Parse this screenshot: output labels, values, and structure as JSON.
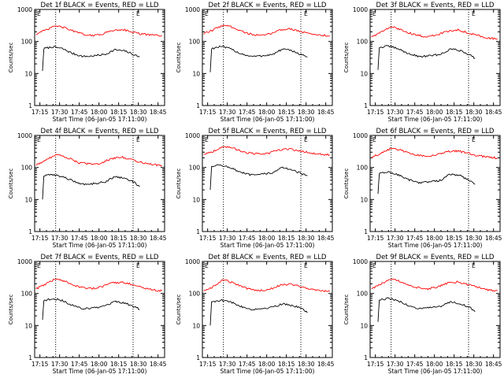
{
  "chart_data": [
    {
      "type": "line",
      "title": "Det 1f BLACK = Events, RED = LLD",
      "xlabel": "Start Time (06-Jan-05 17:11:00)",
      "ylabel": "Counts/sec",
      "yscale": "log",
      "ylim": [
        1,
        1000
      ],
      "xlim": [
        "17:11",
        "18:50"
      ],
      "x_tick_labels": [
        "17:15",
        "17:30",
        "17:45",
        "18:00",
        "18:15",
        "18:30",
        "18:45"
      ],
      "y_tick_labels": [
        "1",
        "10",
        "100",
        "1000"
      ],
      "vlines": [
        "17:27",
        "18:26"
      ],
      "markers": [
        "E",
        "E"
      ],
      "series": [
        {
          "color": "#000000",
          "x": [
            "17:17",
            "17:18",
            "17:25",
            "17:32",
            "17:40",
            "17:48",
            "17:55",
            "18:05",
            "18:12",
            "18:20",
            "18:27",
            "18:31"
          ],
          "values": [
            12,
            60,
            68,
            60,
            42,
            34,
            35,
            40,
            55,
            50,
            38,
            33
          ]
        },
        {
          "color": "#ff0000",
          "x": [
            "17:12",
            "17:20",
            "17:27",
            "17:35",
            "17:45",
            "17:55",
            "18:02",
            "18:10",
            "18:18",
            "18:25",
            "18:32",
            "18:40",
            "18:48"
          ],
          "values": [
            170,
            230,
            310,
            260,
            180,
            150,
            170,
            220,
            240,
            200,
            170,
            160,
            150
          ]
        }
      ]
    },
    {
      "type": "line",
      "title": "Det 2f BLACK = Events, RED = LLD",
      "xlabel": "Start Time (06-Jan-05 17:11:00)",
      "ylabel": "Counts/sec",
      "yscale": "log",
      "ylim": [
        1,
        1000
      ],
      "xlim": [
        "17:11",
        "18:50"
      ],
      "x_tick_labels": [
        "17:15",
        "17:30",
        "17:45",
        "18:00",
        "18:15",
        "18:30",
        "18:45"
      ],
      "y_tick_labels": [
        "1",
        "10",
        "100",
        "1000"
      ],
      "vlines": [
        "17:27",
        "18:26"
      ],
      "markers": [
        "E",
        "E"
      ],
      "series": [
        {
          "color": "#000000",
          "x": [
            "17:17",
            "17:18",
            "17:25",
            "17:32",
            "17:40",
            "17:48",
            "17:55",
            "18:05",
            "18:12",
            "18:20",
            "18:27",
            "18:31"
          ],
          "values": [
            11,
            60,
            70,
            60,
            42,
            34,
            35,
            40,
            58,
            50,
            38,
            33
          ]
        },
        {
          "color": "#ff0000",
          "x": [
            "17:12",
            "17:20",
            "17:27",
            "17:35",
            "17:45",
            "17:55",
            "18:02",
            "18:10",
            "18:18",
            "18:25",
            "18:32",
            "18:40",
            "18:48"
          ],
          "values": [
            170,
            240,
            330,
            270,
            180,
            150,
            170,
            230,
            250,
            210,
            175,
            160,
            150
          ]
        }
      ]
    },
    {
      "type": "line",
      "title": "Det 3f BLACK = Events, RED = LLD",
      "xlabel": "Start Time (06-Jan-05 17:11:00)",
      "ylabel": "Counts/sec",
      "yscale": "log",
      "ylim": [
        1,
        1000
      ],
      "xlim": [
        "17:11",
        "18:50"
      ],
      "x_tick_labels": [
        "17:15",
        "17:30",
        "17:45",
        "18:00",
        "18:15",
        "18:30",
        "18:45"
      ],
      "y_tick_labels": [
        "1",
        "10",
        "100",
        "1000"
      ],
      "vlines": [
        "17:27",
        "18:26"
      ],
      "markers": [
        "E",
        "E"
      ],
      "series": [
        {
          "color": "#000000",
          "x": [
            "17:17",
            "17:18",
            "17:25",
            "17:32",
            "17:40",
            "17:48",
            "17:55",
            "18:05",
            "18:12",
            "18:20",
            "18:27",
            "18:31"
          ],
          "values": [
            13,
            65,
            72,
            60,
            42,
            34,
            35,
            40,
            58,
            52,
            38,
            30
          ]
        },
        {
          "color": "#ff0000",
          "x": [
            "17:12",
            "17:20",
            "17:27",
            "17:35",
            "17:45",
            "17:55",
            "18:02",
            "18:10",
            "18:18",
            "18:25",
            "18:32",
            "18:40",
            "18:48"
          ],
          "values": [
            140,
            200,
            290,
            230,
            160,
            140,
            160,
            210,
            230,
            190,
            160,
            130,
            120
          ]
        }
      ]
    },
    {
      "type": "line",
      "title": "Det 4f BLACK = Events, RED = LLD",
      "xlabel": "Start Time (06-Jan-05 17:11:00)",
      "ylabel": "Counts/sec",
      "yscale": "log",
      "ylim": [
        1,
        1000
      ],
      "xlim": [
        "17:11",
        "18:50"
      ],
      "x_tick_labels": [
        "17:15",
        "17:30",
        "17:45",
        "18:00",
        "18:15",
        "18:30",
        "18:45"
      ],
      "y_tick_labels": [
        "1",
        "10",
        "100",
        "1000"
      ],
      "vlines": [
        "17:27",
        "18:26"
      ],
      "markers": [
        "E",
        "E"
      ],
      "series": [
        {
          "color": "#000000",
          "x": [
            "17:17",
            "17:18",
            "17:25",
            "17:32",
            "17:40",
            "17:48",
            "17:55",
            "18:05",
            "18:12",
            "18:20",
            "18:27",
            "18:31"
          ],
          "values": [
            10,
            55,
            60,
            52,
            38,
            30,
            31,
            36,
            52,
            46,
            34,
            25
          ]
        },
        {
          "color": "#ff0000",
          "x": [
            "17:12",
            "17:20",
            "17:27",
            "17:35",
            "17:45",
            "17:55",
            "18:02",
            "18:10",
            "18:18",
            "18:25",
            "18:32",
            "18:40",
            "18:48"
          ],
          "values": [
            120,
            170,
            260,
            210,
            140,
            125,
            140,
            190,
            210,
            175,
            145,
            125,
            115
          ]
        }
      ]
    },
    {
      "type": "line",
      "title": "Det 5f BLACK = Events, RED = LLD",
      "xlabel": "Start Time (06-Jan-05 17:11:00)",
      "ylabel": "Counts/sec",
      "yscale": "log",
      "ylim": [
        1,
        1000
      ],
      "xlim": [
        "17:11",
        "18:50"
      ],
      "x_tick_labels": [
        "17:15",
        "17:30",
        "17:45",
        "18:00",
        "18:15",
        "18:30",
        "18:45"
      ],
      "y_tick_labels": [
        "1",
        "10",
        "100",
        "1000"
      ],
      "vlines": [
        "17:27",
        "18:26"
      ],
      "markers": [
        "E",
        "E"
      ],
      "series": [
        {
          "color": "#000000",
          "x": [
            "17:17",
            "17:18",
            "17:25",
            "17:32",
            "17:40",
            "17:48",
            "17:55",
            "18:05",
            "18:12",
            "18:20",
            "18:27",
            "18:31"
          ],
          "values": [
            20,
            110,
            120,
            100,
            70,
            58,
            60,
            70,
            100,
            85,
            62,
            55
          ]
        },
        {
          "color": "#ff0000",
          "x": [
            "17:12",
            "17:20",
            "17:27",
            "17:35",
            "17:45",
            "17:55",
            "18:02",
            "18:10",
            "18:18",
            "18:25",
            "18:32",
            "18:40",
            "18:48"
          ],
          "values": [
            260,
            330,
            460,
            390,
            290,
            260,
            280,
            360,
            380,
            330,
            290,
            260,
            250
          ]
        }
      ]
    },
    {
      "type": "line",
      "title": "Det 6f BLACK = Events, RED = LLD",
      "xlabel": "Start Time (06-Jan-05 17:11:00)",
      "ylabel": "Counts/sec",
      "yscale": "log",
      "ylim": [
        1,
        1000
      ],
      "xlim": [
        "17:11",
        "18:50"
      ],
      "x_tick_labels": [
        "17:15",
        "17:30",
        "17:45",
        "18:00",
        "18:15",
        "18:30",
        "18:45"
      ],
      "y_tick_labels": [
        "1",
        "10",
        "100",
        "1000"
      ],
      "vlines": [
        "17:27",
        "18:26"
      ],
      "markers": [
        "E",
        "E"
      ],
      "series": [
        {
          "color": "#000000",
          "x": [
            "17:17",
            "17:18",
            "17:25",
            "17:32",
            "17:40",
            "17:48",
            "17:55",
            "18:05",
            "18:12",
            "18:20",
            "18:27",
            "18:31"
          ],
          "values": [
            15,
            65,
            72,
            60,
            42,
            34,
            35,
            40,
            62,
            55,
            38,
            30
          ]
        },
        {
          "color": "#ff0000",
          "x": [
            "17:12",
            "17:20",
            "17:27",
            "17:35",
            "17:45",
            "17:55",
            "18:02",
            "18:10",
            "18:18",
            "18:25",
            "18:32",
            "18:40",
            "18:48"
          ],
          "values": [
            210,
            280,
            400,
            340,
            250,
            225,
            245,
            310,
            330,
            280,
            240,
            210,
            200
          ]
        }
      ]
    },
    {
      "type": "line",
      "title": "Det 7f BLACK = Events, RED = LLD",
      "xlabel": "Start Time (06-Jan-05 17:11:00)",
      "ylabel": "Counts/sec",
      "yscale": "log",
      "ylim": [
        1,
        1000
      ],
      "xlim": [
        "17:11",
        "18:50"
      ],
      "x_tick_labels": [
        "17:15",
        "17:30",
        "17:45",
        "18:00",
        "18:15",
        "18:30",
        "18:45"
      ],
      "y_tick_labels": [
        "1",
        "10",
        "100",
        "1000"
      ],
      "vlines": [
        "17:27",
        "18:26"
      ],
      "markers": [
        "E",
        "E"
      ],
      "series": [
        {
          "color": "#000000",
          "x": [
            "17:17",
            "17:18",
            "17:25",
            "17:32",
            "17:40",
            "17:48",
            "17:55",
            "18:05",
            "18:12",
            "18:20",
            "18:27",
            "18:31"
          ],
          "values": [
            15,
            60,
            70,
            60,
            42,
            34,
            35,
            40,
            55,
            50,
            38,
            32
          ]
        },
        {
          "color": "#ff0000",
          "x": [
            "17:12",
            "17:20",
            "17:27",
            "17:35",
            "17:45",
            "17:55",
            "18:02",
            "18:10",
            "18:18",
            "18:25",
            "18:32",
            "18:40",
            "18:48"
          ],
          "values": [
            140,
            200,
            290,
            230,
            160,
            140,
            160,
            210,
            230,
            190,
            160,
            130,
            120
          ]
        }
      ]
    },
    {
      "type": "line",
      "title": "Det 8f BLACK = Events, RED = LLD",
      "xlabel": "Start Time (06-Jan-05 17:11:00)",
      "ylabel": "Counts/sec",
      "yscale": "log",
      "ylim": [
        1,
        1000
      ],
      "xlim": [
        "17:11",
        "18:50"
      ],
      "x_tick_labels": [
        "17:15",
        "17:30",
        "17:45",
        "18:00",
        "18:15",
        "18:30",
        "18:45"
      ],
      "y_tick_labels": [
        "1",
        "10",
        "100",
        "1000"
      ],
      "vlines": [
        "17:27",
        "18:26"
      ],
      "markers": [
        "E",
        "E"
      ],
      "series": [
        {
          "color": "#000000",
          "x": [
            "17:17",
            "17:18",
            "17:25",
            "17:32",
            "17:40",
            "17:48",
            "17:55",
            "18:05",
            "18:12",
            "18:20",
            "18:27",
            "18:31"
          ],
          "values": [
            10,
            55,
            62,
            55,
            40,
            32,
            33,
            38,
            48,
            42,
            33,
            25
          ]
        },
        {
          "color": "#ff0000",
          "x": [
            "17:12",
            "17:20",
            "17:27",
            "17:35",
            "17:45",
            "17:55",
            "18:02",
            "18:10",
            "18:18",
            "18:25",
            "18:32",
            "18:40",
            "18:48"
          ],
          "values": [
            120,
            170,
            270,
            210,
            140,
            125,
            135,
            180,
            200,
            170,
            140,
            125,
            115
          ]
        }
      ]
    },
    {
      "type": "line",
      "title": "Det 9f BLACK = Events, RED = LLD",
      "xlabel": "Start Time (06-Jan-05 17:11:00)",
      "ylabel": "Counts/sec",
      "yscale": "log",
      "ylim": [
        1,
        1000
      ],
      "xlim": [
        "17:11",
        "18:50"
      ],
      "x_tick_labels": [
        "17:15",
        "17:30",
        "17:45",
        "18:00",
        "18:15",
        "18:30",
        "18:45"
      ],
      "y_tick_labels": [
        "1",
        "10",
        "100",
        "1000"
      ],
      "vlines": [
        "17:27",
        "18:26"
      ],
      "markers": [
        "E",
        "E"
      ],
      "series": [
        {
          "color": "#000000",
          "x": [
            "17:17",
            "17:18",
            "17:25",
            "17:32",
            "17:40",
            "17:48",
            "17:55",
            "18:05",
            "18:12",
            "18:20",
            "18:27",
            "18:31"
          ],
          "values": [
            13,
            62,
            70,
            60,
            42,
            34,
            35,
            40,
            55,
            48,
            36,
            27
          ]
        },
        {
          "color": "#ff0000",
          "x": [
            "17:12",
            "17:20",
            "17:27",
            "17:35",
            "17:45",
            "17:55",
            "18:02",
            "18:10",
            "18:18",
            "18:25",
            "18:32",
            "18:40",
            "18:48"
          ],
          "values": [
            140,
            200,
            290,
            230,
            160,
            140,
            160,
            210,
            230,
            190,
            160,
            130,
            120
          ]
        }
      ]
    }
  ]
}
